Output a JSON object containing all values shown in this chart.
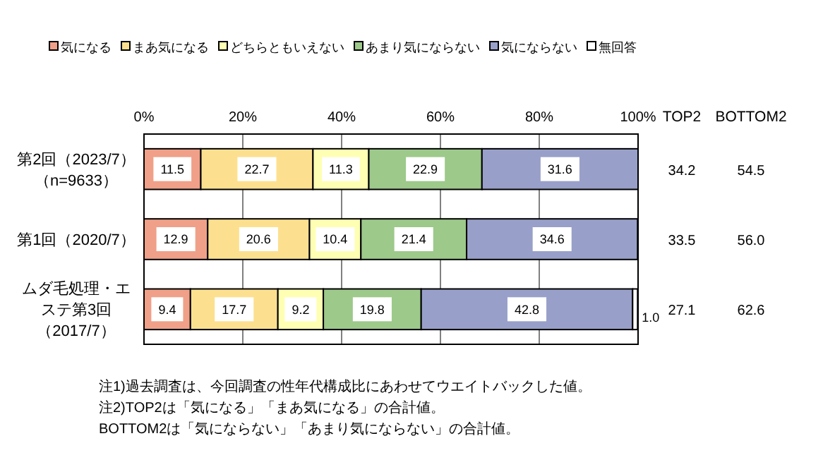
{
  "chart_data": {
    "type": "bar",
    "orientation": "horizontal",
    "stacked": true,
    "categories": [
      "第2回（2023/7）（n=9633）",
      "第1回（2020/7）",
      "ムダ毛処理・エステ第3回（2017/7）"
    ],
    "series": [
      {
        "name": "気になる",
        "color": "#f0a088",
        "values": [
          11.5,
          12.9,
          9.4
        ],
        "value_labels": [
          "11.5",
          "12.9",
          "9.4"
        ]
      },
      {
        "name": "まあ気になる",
        "color": "#fde08f",
        "values": [
          22.7,
          20.6,
          17.7
        ],
        "value_labels": [
          "22.7",
          "20.6",
          "17.7"
        ]
      },
      {
        "name": "どちらともいえない",
        "color": "#ffffb3",
        "values": [
          11.3,
          10.4,
          9.2
        ],
        "value_labels": [
          "11.3",
          "10.4",
          "9.2"
        ]
      },
      {
        "name": "あまり気にならない",
        "color": "#9dc98a",
        "values": [
          22.9,
          21.4,
          19.8
        ],
        "value_labels": [
          "22.9",
          "21.4",
          "19.8"
        ]
      },
      {
        "name": "気にならない",
        "color": "#98a0c9",
        "values": [
          31.6,
          34.6,
          42.8
        ],
        "value_labels": [
          "31.6",
          "34.6",
          "42.8"
        ]
      },
      {
        "name": "無回答",
        "color": "#ffffff",
        "values": [
          null,
          null,
          1.0
        ],
        "value_labels": [
          null,
          null,
          "1.0"
        ]
      }
    ],
    "xlim": [
      0,
      100
    ],
    "xticks": [
      {
        "value": 0,
        "label": "0%"
      },
      {
        "value": 20,
        "label": "20%"
      },
      {
        "value": 40,
        "label": "40%"
      },
      {
        "value": 60,
        "label": "60%"
      },
      {
        "value": 80,
        "label": "80%"
      },
      {
        "value": 100,
        "label": "100%"
      }
    ],
    "grid": "x",
    "legend": "top",
    "annotations": [
      "TOP2",
      "BOTTOM2",
      "34.2",
      "54.5",
      "33.5",
      "56.0",
      "27.1",
      "62.6",
      "注1)過去調査は、今回調査の性年代構成比にあわせてウエイトバックした値。",
      "注2)TOP2は「気になる」「まあ気になる」の合計値。",
      "BOTTOM2は「気にならない」「あまり気にならない」の合計値。"
    ]
  }
}
